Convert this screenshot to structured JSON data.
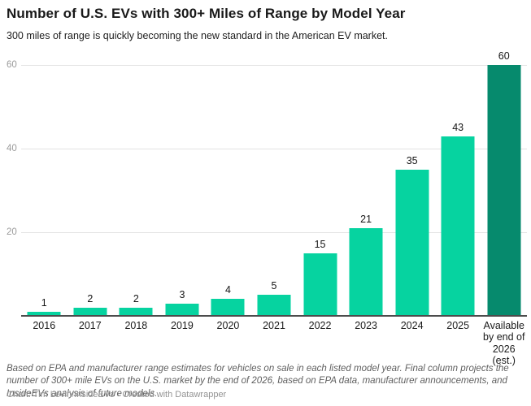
{
  "header": {
    "title": "Number of U.S. EVs with 300+ Miles of Range by Model Year",
    "subtitle": "300 miles of range is quickly becoming the new standard in the American EV market."
  },
  "chart_data": {
    "type": "bar",
    "title": "Number of U.S. EVs with 300+ Miles of Range by Model Year",
    "subtitle": "300 miles of range is quickly becoming the new standard in the American EV market.",
    "categories": [
      "2016",
      "2017",
      "2018",
      "2019",
      "2020",
      "2021",
      "2022",
      "2023",
      "2024",
      "2025",
      "Available by end of 2026 (est.)"
    ],
    "values": [
      1,
      2,
      2,
      3,
      4,
      5,
      15,
      21,
      35,
      43,
      60
    ],
    "xlabel": "",
    "ylabel": "",
    "ylim": [
      0,
      60
    ],
    "yticks": [
      20,
      40,
      60
    ],
    "grid": true,
    "legend": false,
    "bar_color": "#06d3a0",
    "final_bar_color": "#068a6d",
    "highlight_index": 10,
    "value_labels_shown": true
  },
  "footer": {
    "note": "Based on EPA and manufacturer range estimates for vehicles on sale in each listed model year. Final column projects the number of 300+ mile EVs on the U.S. market by the end of 2026, based on EPA data, manufacturer announcements, and InsideEVs analysis of future models.",
    "credit": "Chart: Tim Levin/InsideEVs · Created with Datawrapper"
  }
}
